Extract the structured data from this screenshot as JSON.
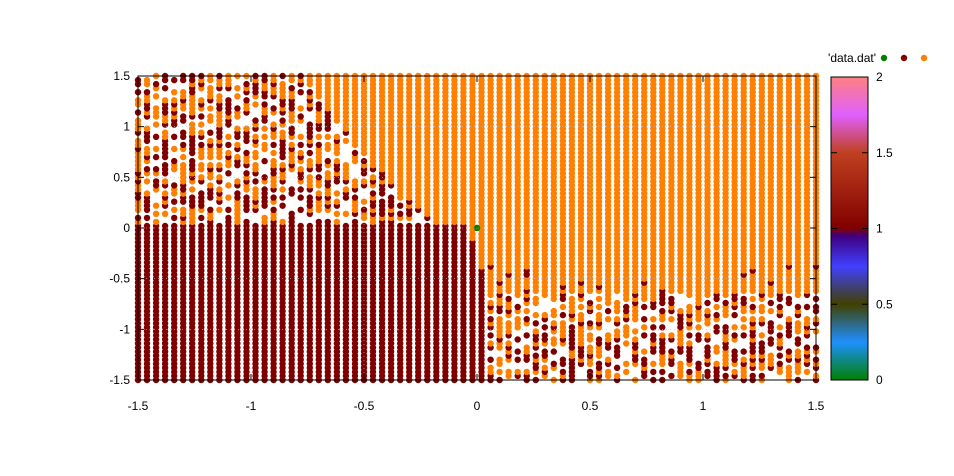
{
  "chart_data": {
    "type": "scatter",
    "title": "",
    "xlabel": "",
    "ylabel": "",
    "xlim": [
      -1.5,
      1.5
    ],
    "ylim": [
      -1.5,
      1.5
    ],
    "x_ticks": [
      "-1.5",
      "-1",
      "-0.5",
      "0",
      "0.5",
      "1",
      "1.5"
    ],
    "y_ticks": [
      "-1.5",
      "-1",
      "-0.5",
      "0",
      "0.5",
      "1",
      "1.5"
    ],
    "grid": true,
    "legend": {
      "label": "'data.dat'",
      "placement": "top-right",
      "marker_colors": [
        "#008000",
        "#800000",
        "#ff8000"
      ]
    },
    "colorbar": {
      "range": [
        0,
        2
      ],
      "ticks": [
        "0",
        "0.5",
        "1",
        "1.5",
        "2"
      ],
      "stops": [
        {
          "value": 0.0,
          "color": "#008000"
        },
        {
          "value": 0.25,
          "color": "#1e90ff"
        },
        {
          "value": 0.5,
          "color": "#404000"
        },
        {
          "value": 0.75,
          "color": "#4040ff"
        },
        {
          "value": 0.95,
          "color": "#400080"
        },
        {
          "value": 1.0,
          "color": "#800000"
        },
        {
          "value": 1.5,
          "color": "#c04020"
        },
        {
          "value": 1.75,
          "color": "#e060ff"
        },
        {
          "value": 2.0,
          "color": "#ff8080"
        }
      ]
    },
    "series": [
      {
        "value": 0,
        "color": "#008000",
        "points": [
          [
            0.0,
            0.0
          ]
        ]
      },
      {
        "value": 1,
        "color": "#800000",
        "region": "lower-left basin: x <= boundary curve, y <= 0.05"
      },
      {
        "value": 2,
        "color": "#ff8000",
        "region": "upper-right basin: right of curve from (-0.75, 1.5) to (0, 0), above y ≈ -0.4"
      }
    ]
  }
}
